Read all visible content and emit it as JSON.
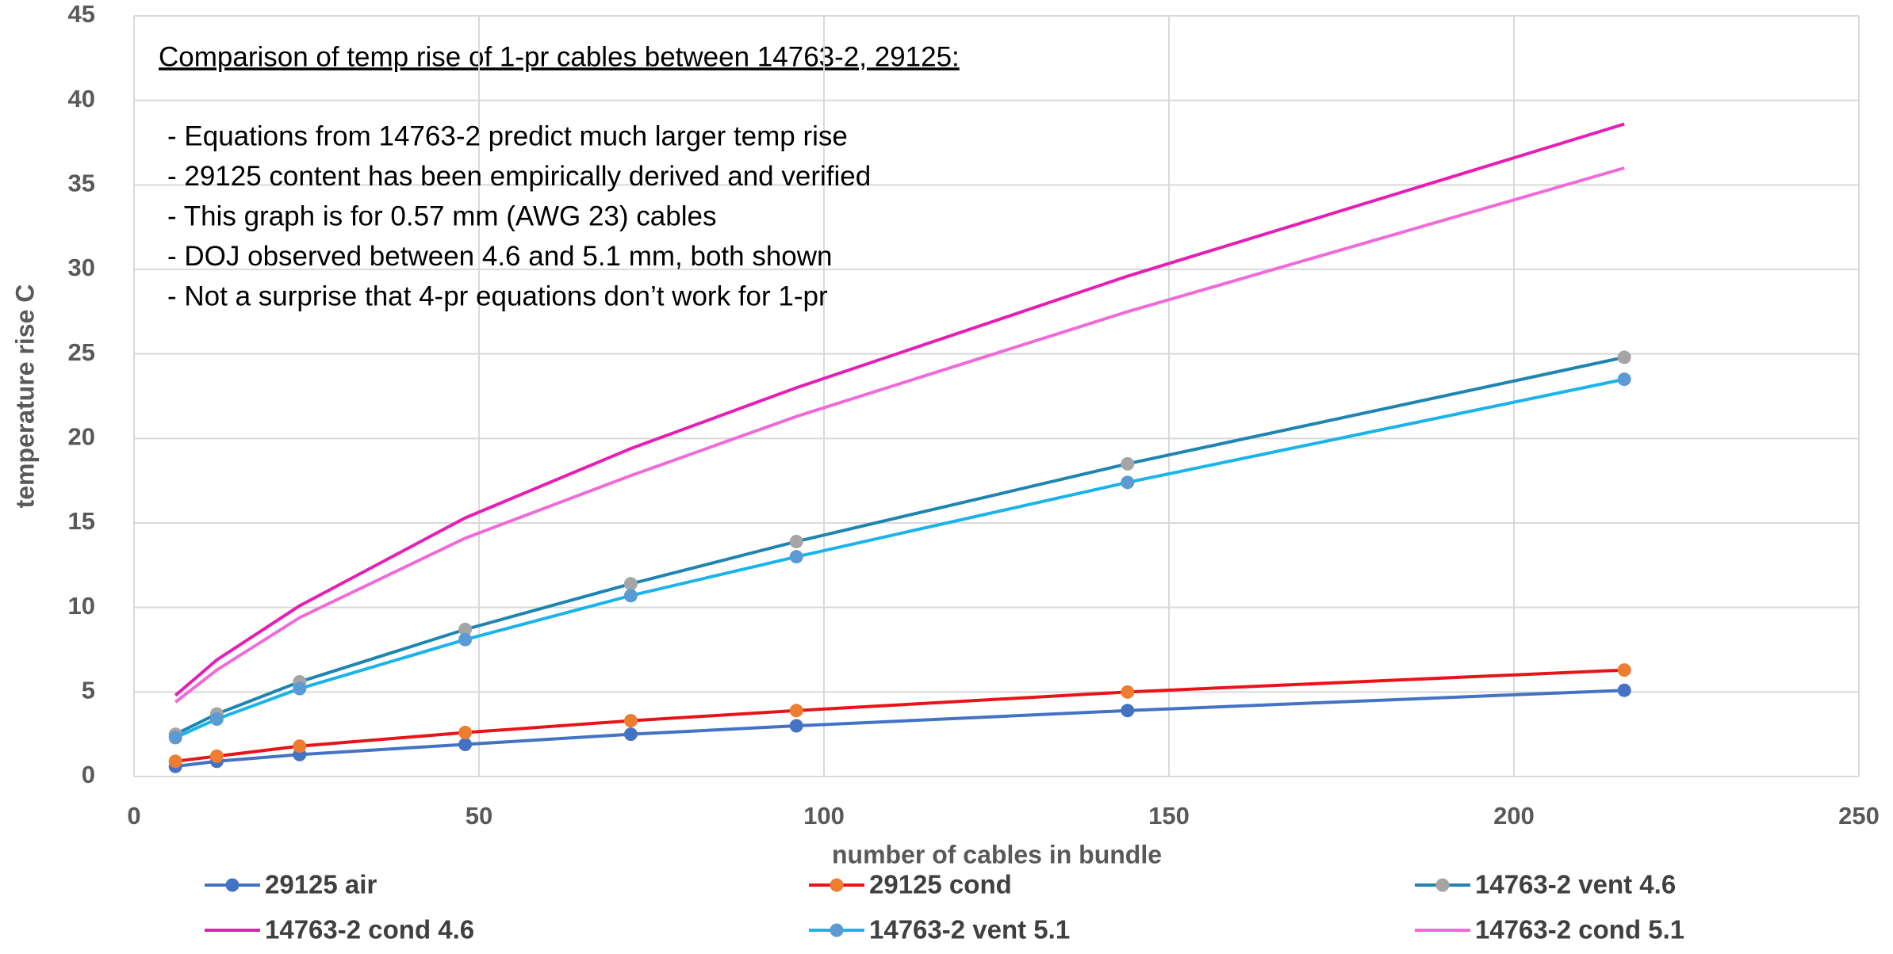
{
  "chart_data": {
    "type": "line",
    "xlabel": "number of cables in bundle",
    "ylabel": "temperature rise C",
    "annotation_title": "Comparison of temp rise of 1-pr cables between 14763-2, 29125:",
    "annotations": [
      "- Equations from 14763-2 predict much larger temp rise",
      "- 29125 content has been empirically derived and verified",
      "- This graph is for 0.57 mm (AWG 23) cables",
      "- DOJ observed between 4.6 and 5.1 mm, both shown",
      "- Not a surprise that 4-pr equations don’t work for 1-pr"
    ],
    "x": [
      6,
      12,
      24,
      48,
      72,
      96,
      144,
      216
    ],
    "xlim": [
      0,
      250
    ],
    "xticks": [
      0,
      50,
      100,
      150,
      200,
      250
    ],
    "ylim": [
      0,
      45
    ],
    "yticks": [
      0,
      5,
      10,
      15,
      20,
      25,
      30,
      35,
      40,
      45
    ],
    "grid": true,
    "legend": "bottom",
    "series": [
      {
        "name": "29125 air",
        "color": "#4472c4",
        "marker_color": "#4472c4",
        "markers": true,
        "values": [
          0.6,
          0.9,
          1.3,
          1.9,
          2.5,
          3.0,
          3.9,
          5.1
        ]
      },
      {
        "name": "29125 cond",
        "color": "#e8141a",
        "marker_color": "#ed7d31",
        "markers": true,
        "values": [
          0.9,
          1.2,
          1.8,
          2.6,
          3.3,
          3.9,
          5.0,
          6.3
        ]
      },
      {
        "name": "14763-2 vent 4.6",
        "color": "#1f85b0",
        "marker_color": "#a5a5a5",
        "markers": true,
        "values": [
          2.5,
          3.7,
          5.6,
          8.7,
          11.4,
          13.9,
          18.5,
          24.8
        ]
      },
      {
        "name": "14763-2 cond 4.6",
        "color": "#e61fb4",
        "marker_color": "#e61fb4",
        "markers": false,
        "values": [
          4.8,
          6.9,
          10.1,
          15.3,
          19.4,
          23.0,
          29.6,
          38.6
        ]
      },
      {
        "name": "14763-2 vent 5.1",
        "color": "#1ab3ea",
        "marker_color": "#5b9bd5",
        "markers": true,
        "values": [
          2.3,
          3.4,
          5.2,
          8.1,
          10.7,
          13.0,
          17.4,
          23.5
        ]
      },
      {
        "name": "14763-2 cond 5.1",
        "color": "#f06ad8",
        "marker_color": "#f06ad8",
        "markers": false,
        "values": [
          4.4,
          6.3,
          9.4,
          14.1,
          17.8,
          21.3,
          27.5,
          36.0
        ]
      }
    ]
  }
}
